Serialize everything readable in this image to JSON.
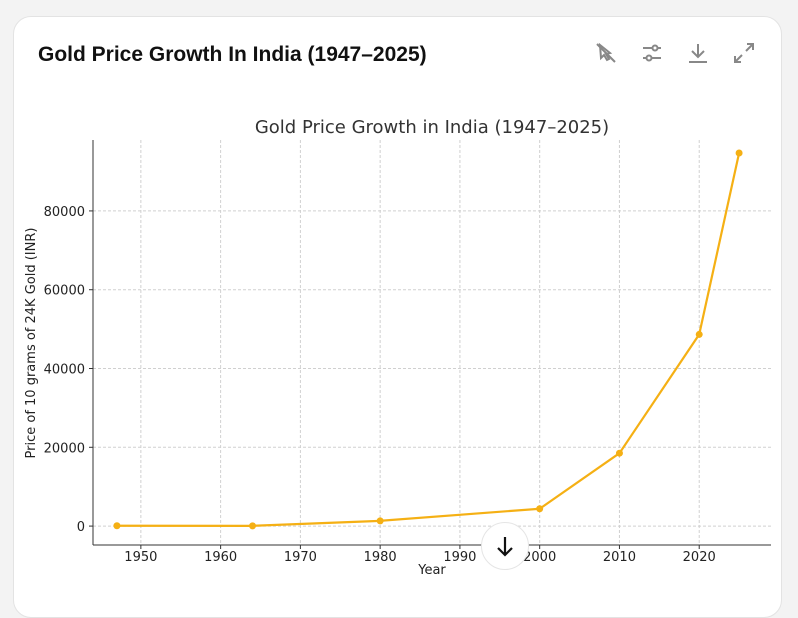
{
  "card": {
    "title": "Gold Price Growth In India (1947–2025)"
  },
  "toolbar": {
    "icons": [
      "interactive-toggle-icon",
      "settings-sliders-icon",
      "download-icon",
      "expand-icon"
    ]
  },
  "scroll_button": {
    "icon": "arrow-down-icon"
  },
  "chart_data": {
    "type": "line",
    "title": "Gold Price Growth in India (1947–2025)",
    "xlabel": "Year",
    "ylabel": "Price of 10 grams of 24K Gold (INR)",
    "x": [
      1947,
      1964,
      1980,
      2000,
      2010,
      2020,
      2025
    ],
    "values": [
      88,
      63,
      1330,
      4400,
      18500,
      48650,
      94700
    ],
    "xlim": [
      1944,
      2029
    ],
    "ylim": [
      -4800,
      98000
    ],
    "xticks": [
      "1950",
      "1960",
      "1970",
      "1980",
      "1990",
      "2000",
      "2010",
      "2020"
    ],
    "yticks": [
      "0",
      "20000",
      "40000",
      "60000",
      "80000"
    ],
    "grid": true,
    "color": "#f5b014"
  }
}
